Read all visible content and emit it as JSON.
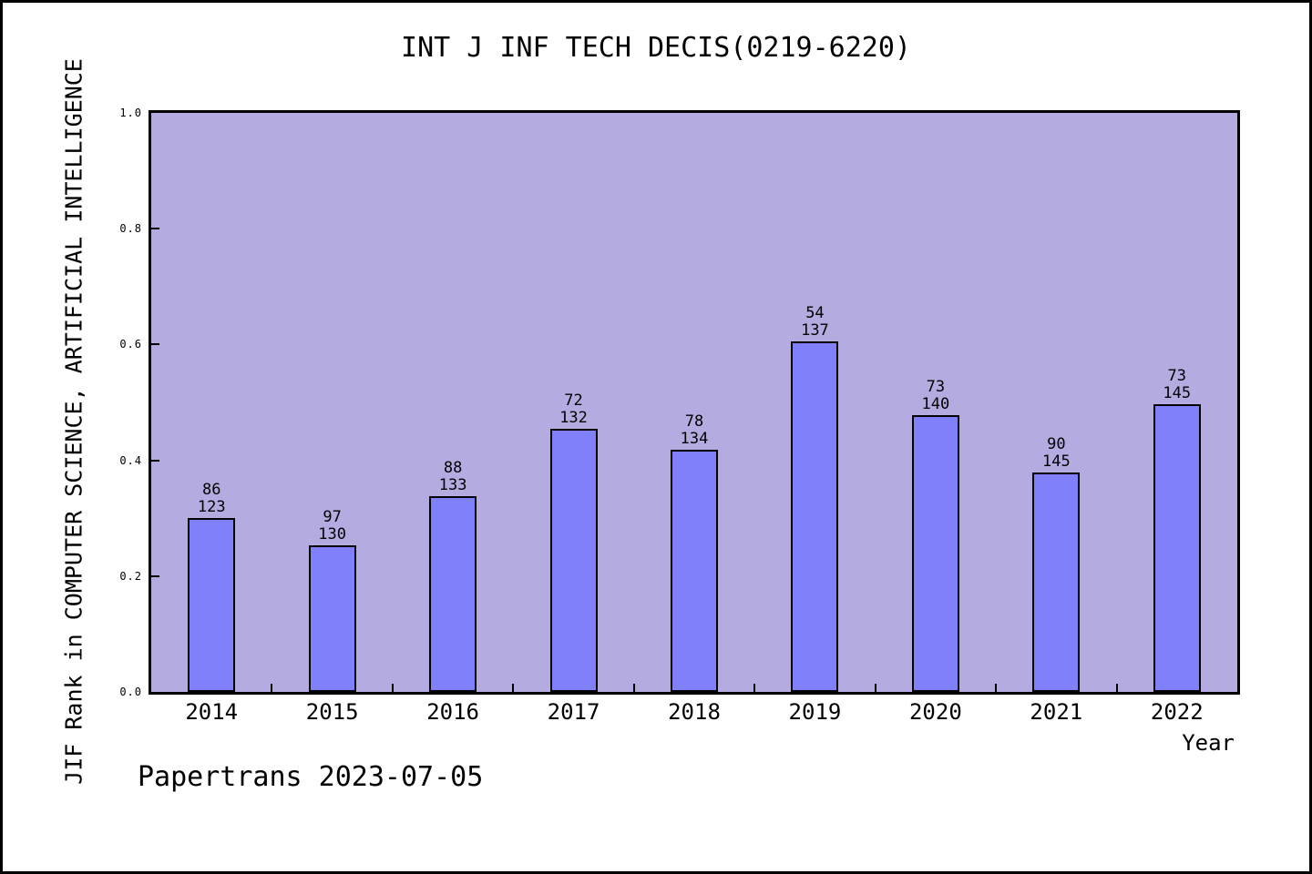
{
  "title": "INT J INF TECH DECIS(0219-6220)",
  "footer": "Papertrans 2023-07-05",
  "chart_data": {
    "type": "bar",
    "title": "INT J INF TECH DECIS(0219-6220)",
    "xlabel": "Year",
    "ylabel": "JIF Rank in COMPUTER SCIENCE, ARTIFICIAL INTELLIGENCE",
    "ylim": [
      0.0,
      1.0
    ],
    "yticks": [
      "0.0",
      "0.2",
      "0.4",
      "0.6",
      "0.8",
      "1.0"
    ],
    "grid": false,
    "legend": false,
    "categories": [
      "2014",
      "2015",
      "2016",
      "2017",
      "2018",
      "2019",
      "2020",
      "2021",
      "2022"
    ],
    "bars": [
      {
        "year": "2014",
        "rank": 86,
        "total": 123,
        "value": 0.3008
      },
      {
        "year": "2015",
        "rank": 97,
        "total": 130,
        "value": 0.2538
      },
      {
        "year": "2016",
        "rank": 88,
        "total": 133,
        "value": 0.3383
      },
      {
        "year": "2017",
        "rank": 72,
        "total": 132,
        "value": 0.4545
      },
      {
        "year": "2018",
        "rank": 78,
        "total": 134,
        "value": 0.4179
      },
      {
        "year": "2019",
        "rank": 54,
        "total": 137,
        "value": 0.6058
      },
      {
        "year": "2020",
        "rank": 73,
        "total": 140,
        "value": 0.4786
      },
      {
        "year": "2021",
        "rank": 90,
        "total": 145,
        "value": 0.3793
      },
      {
        "year": "2022",
        "rank": 73,
        "total": 145,
        "value": 0.4966
      }
    ],
    "colors": {
      "bar_fill": "#8080fb",
      "bar_border": "#000000",
      "plot_background": "#b4ace1",
      "axis": "#000000",
      "text": "#000000",
      "page_background": "#ffffff"
    }
  }
}
